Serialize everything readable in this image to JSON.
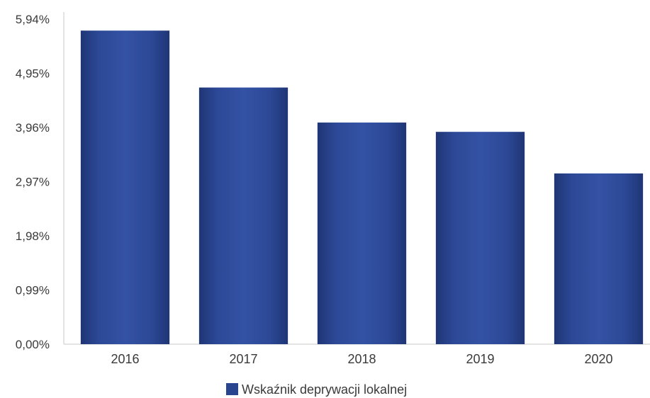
{
  "chart_data": {
    "type": "bar",
    "title": "",
    "xlabel": "",
    "ylabel": "",
    "categories": [
      "2016",
      "2017",
      "2018",
      "2019",
      "2020"
    ],
    "series": [
      {
        "name": "Wskaźnik deprywacji lokalnej",
        "values": [
          5.73,
          4.69,
          4.05,
          3.88,
          3.12
        ],
        "color": "#2a4590"
      }
    ],
    "y_ticks": [
      "0,00%",
      "0,99%",
      "1,98%",
      "2,97%",
      "3,96%",
      "4,95%",
      "5,94%"
    ],
    "y_tick_values": [
      0,
      0.99,
      1.98,
      2.97,
      3.96,
      4.95,
      5.94
    ],
    "ylim": [
      0,
      5.94
    ],
    "grid": false,
    "legend_position": "bottom-center",
    "colors": {
      "bar": "#2a4590",
      "bar_dark": "#1b2f6b",
      "axis": "#c8c8c8",
      "text": "#3a3a3a"
    }
  }
}
